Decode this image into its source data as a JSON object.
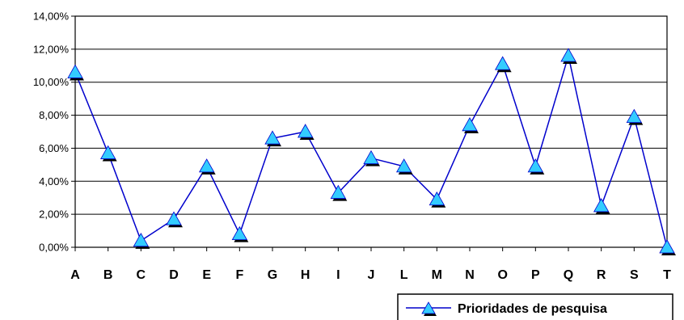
{
  "chart_data": {
    "type": "line",
    "categories": [
      "A",
      "B",
      "C",
      "D",
      "E",
      "F",
      "G",
      "H",
      "I",
      "J",
      "L",
      "M",
      "N",
      "O",
      "P",
      "Q",
      "R",
      "S",
      "T"
    ],
    "series": [
      {
        "name": "Prioridades de pesquisa",
        "values": [
          10.6,
          5.7,
          0.4,
          1.7,
          4.9,
          0.8,
          6.6,
          7.0,
          3.3,
          5.4,
          4.9,
          2.9,
          7.4,
          11.1,
          4.9,
          11.6,
          2.5,
          7.9,
          0.0
        ],
        "color": "#0000cc",
        "marker": "triangle",
        "marker_color": "#33ccff"
      }
    ],
    "y_tick_labels": [
      "0,00%",
      "2,00%",
      "4,00%",
      "6,00%",
      "8,00%",
      "10,00%",
      "12,00%",
      "14,00%"
    ],
    "ylim": [
      0,
      14
    ],
    "y_unit": "percent",
    "grid": "horizontal",
    "legend_position": "bottom-right",
    "title": "",
    "xlabel": "",
    "ylabel": ""
  }
}
